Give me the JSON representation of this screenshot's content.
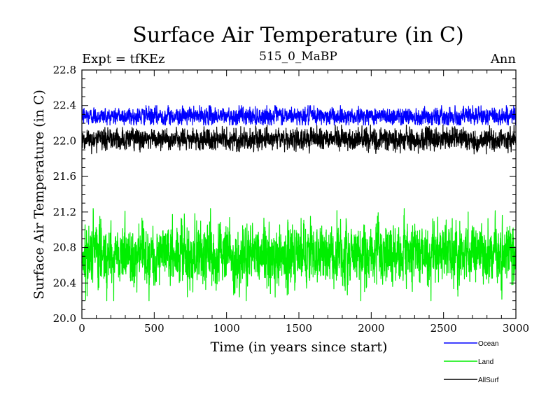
{
  "chart_data": {
    "type": "line",
    "title": "Surface Air Temperature (in C)",
    "subtitle": "515_0_MaBP",
    "left_label": "Expt = tfKEz",
    "right_label": "Ann",
    "xlabel": "Time (in years since start)",
    "ylabel": "Surface Air Temperature (in C)",
    "xlim": [
      0,
      3000
    ],
    "ylim": [
      20.0,
      22.8
    ],
    "x_ticks": [
      0,
      500,
      1000,
      1500,
      2000,
      2500,
      3000
    ],
    "x_tick_labels": [
      "0",
      "500",
      "1000",
      "1500",
      "2000",
      "2500",
      "3000"
    ],
    "y_ticks": [
      20.0,
      20.4,
      20.8,
      21.2,
      21.6,
      22.0,
      22.4,
      22.8
    ],
    "y_tick_labels": [
      "20.0",
      "20.4",
      "20.8",
      "21.2",
      "21.6",
      "22.0",
      "22.4",
      "22.8"
    ],
    "grid": false,
    "legend_position": "bottom-right, outside plot",
    "x_range": {
      "start": 0,
      "end": 3000,
      "step": 1
    },
    "series": [
      {
        "name": "Ocean",
        "color": "#0000ff",
        "mean": 22.28,
        "noise_amplitude": 0.045,
        "min": 22.18,
        "max": 22.4
      },
      {
        "name": "Land",
        "color": "#00ee00",
        "mean": 20.73,
        "noise_amplitude": 0.16,
        "min": 20.2,
        "max": 21.24
      },
      {
        "name": "AllSurf",
        "color": "#000000",
        "mean": 22.02,
        "noise_amplitude": 0.055,
        "min": 21.85,
        "max": 22.18
      }
    ]
  }
}
